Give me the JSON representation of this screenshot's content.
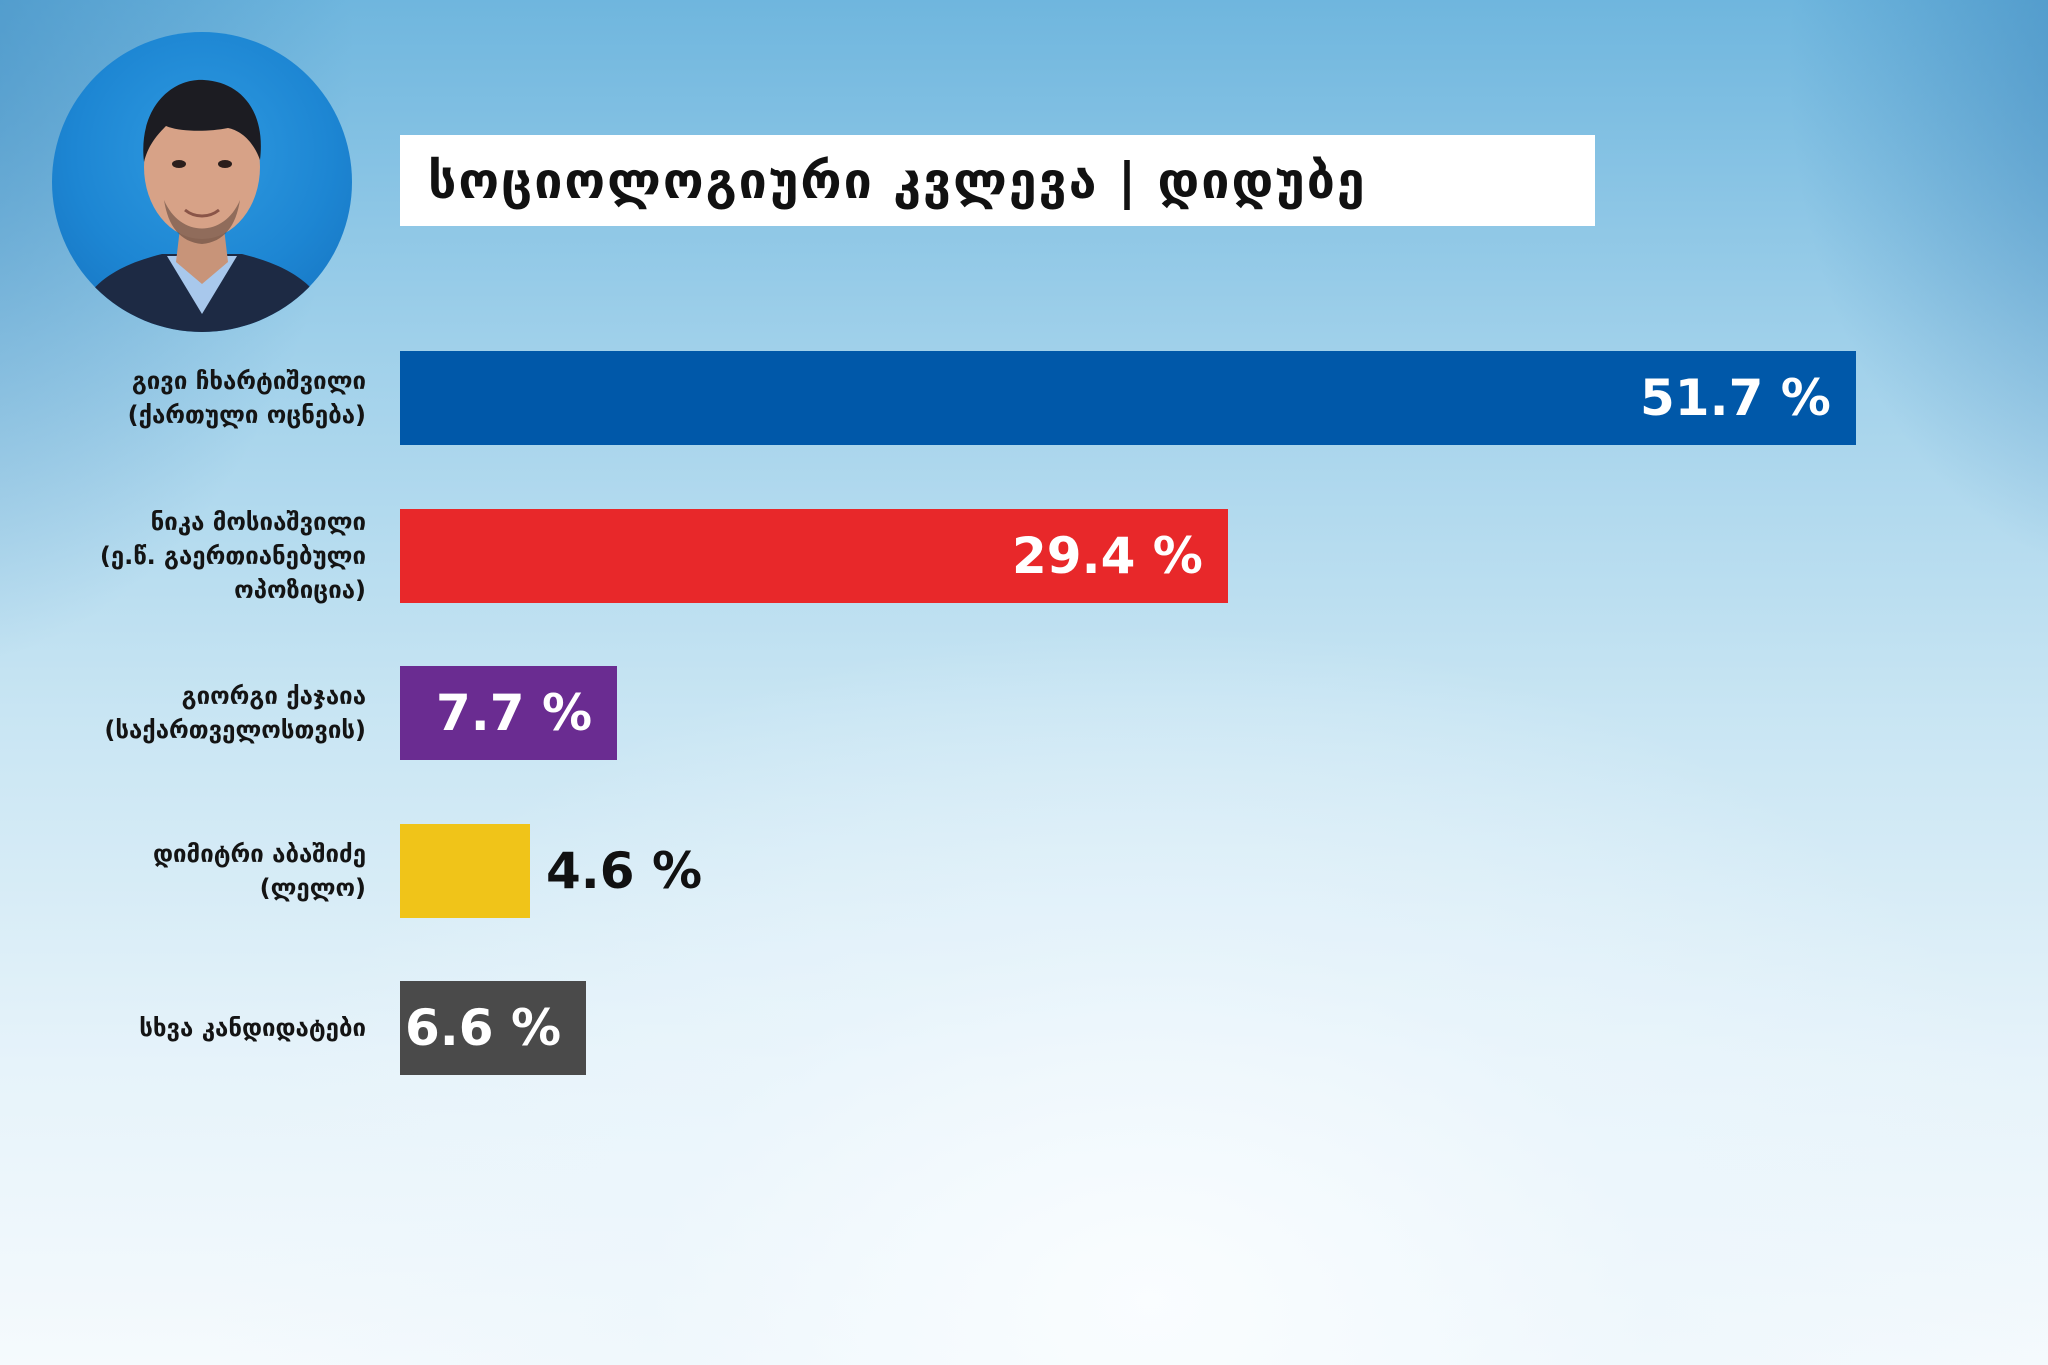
{
  "header": {
    "title": "სოციოლოგიური კვლევა | დიდუბე"
  },
  "avatar": {
    "icon": "candidate-portrait",
    "bg_color": "#1d86d3"
  },
  "chart_data": {
    "type": "bar",
    "orientation": "horizontal",
    "title": "სოციოლოგიური კვლევა | დიდუბე",
    "xlim": [
      0,
      51.7
    ],
    "grid": false,
    "legend": "none",
    "categories": [
      "გივი ჩხარტიშვილი\n(ქართული ოცნება)",
      "ნიკა მოსიაშვილი\n(ე.წ. გაერთიანებული\nოპოზიცია)",
      "გიორგი ქაჯაია\n(საქართველოსთვის)",
      "დიმიტრი აბაშიძე\n(ლელო)",
      "სხვა კანდიდატები"
    ],
    "values": [
      51.7,
      29.4,
      7.7,
      4.6,
      6.6
    ],
    "value_labels": [
      "51.7 %",
      "29.4 %",
      "7.7 %",
      "4.6 %",
      "6.6 %"
    ],
    "colors": [
      "#0058a9",
      "#e8282a",
      "#6a2c91",
      "#f0c419",
      "#4a4a4a"
    ],
    "label_colors": [
      "#ffffff",
      "#ffffff",
      "#ffffff",
      "#111111",
      "#ffffff"
    ],
    "label_outside": [
      false,
      false,
      false,
      true,
      false
    ]
  }
}
